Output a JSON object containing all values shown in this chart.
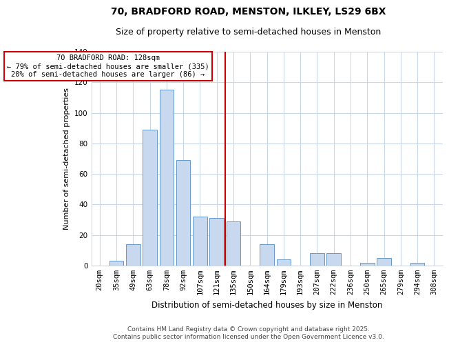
{
  "title": "70, BRADFORD ROAD, MENSTON, ILKLEY, LS29 6BX",
  "subtitle": "Size of property relative to semi-detached houses in Menston",
  "xlabel": "Distribution of semi-detached houses by size in Menston",
  "ylabel": "Number of semi-detached properties",
  "bar_labels": [
    "20sqm",
    "35sqm",
    "49sqm",
    "63sqm",
    "78sqm",
    "92sqm",
    "107sqm",
    "121sqm",
    "135sqm",
    "150sqm",
    "164sqm",
    "179sqm",
    "193sqm",
    "207sqm",
    "222sqm",
    "236sqm",
    "250sqm",
    "265sqm",
    "279sqm",
    "294sqm",
    "308sqm"
  ],
  "bar_values": [
    0,
    3,
    14,
    89,
    115,
    69,
    32,
    31,
    29,
    0,
    14,
    4,
    0,
    8,
    8,
    0,
    2,
    5,
    0,
    2,
    0
  ],
  "bar_color": "#c8d8ee",
  "bar_edge_color": "#6699cc",
  "vline_pos": 7.5,
  "vline_color": "#cc0000",
  "annotation_title": "70 BRADFORD ROAD: 128sqm",
  "annotation_line1": "← 79% of semi-detached houses are smaller (335)",
  "annotation_line2": "20% of semi-detached houses are larger (86) →",
  "annotation_box_color": "#ffffff",
  "annotation_box_edge": "#cc0000",
  "ylim": [
    0,
    140
  ],
  "yticks": [
    0,
    20,
    40,
    60,
    80,
    100,
    120,
    140
  ],
  "footer1": "Contains HM Land Registry data © Crown copyright and database right 2025.",
  "footer2": "Contains public sector information licensed under the Open Government Licence v3.0.",
  "background_color": "#ffffff",
  "grid_color": "#c8d8e8",
  "title_fontsize": 10,
  "subtitle_fontsize": 9,
  "xlabel_fontsize": 8.5,
  "ylabel_fontsize": 8,
  "tick_fontsize": 7.5,
  "annotation_fontsize": 7.5,
  "footer_fontsize": 6.5
}
